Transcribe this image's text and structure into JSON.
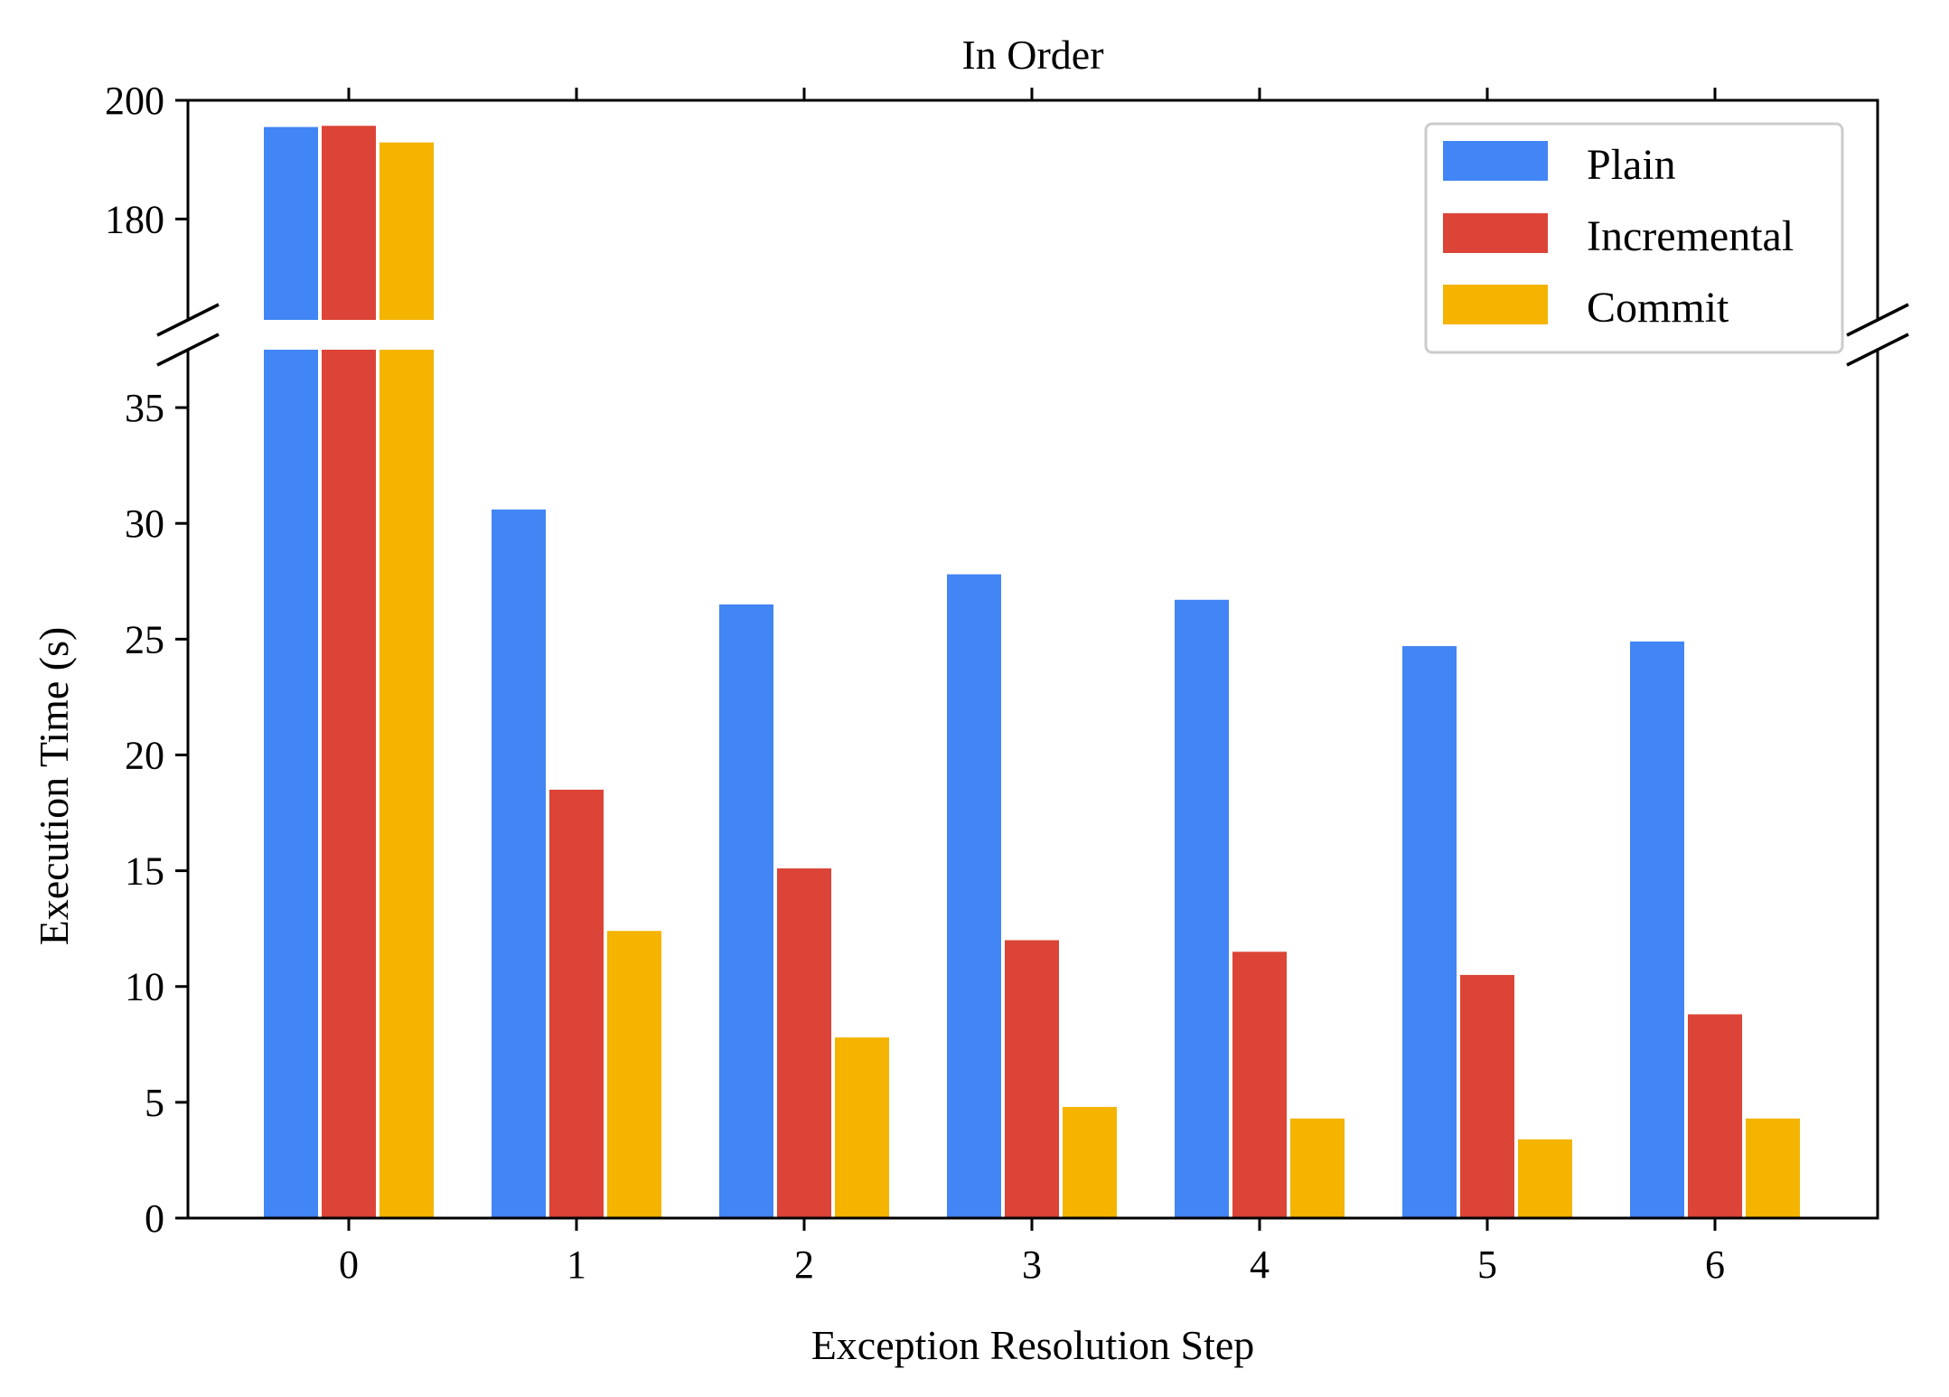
{
  "chart_data": {
    "type": "bar",
    "title": "In Order",
    "xlabel": "Exception Resolution Step",
    "ylabel": "Execution Time (s)",
    "categories": [
      "0",
      "1",
      "2",
      "3",
      "4",
      "5",
      "6"
    ],
    "series": [
      {
        "name": "Plain",
        "color": "#4285f4",
        "values": [
          195.5,
          30.6,
          26.5,
          27.8,
          26.7,
          24.7,
          24.9
        ]
      },
      {
        "name": "Incremental",
        "color": "#db4437",
        "values": [
          195.7,
          18.5,
          15.1,
          12.0,
          11.5,
          10.5,
          8.8
        ]
      },
      {
        "name": "Commit",
        "color": "#f4b400",
        "values": [
          192.9,
          12.4,
          7.8,
          4.8,
          4.3,
          3.4,
          4.3
        ]
      }
    ],
    "y_axis_broken": true,
    "ylim_upper": [
      163,
      200
    ],
    "ylim_lower": [
      0,
      37.5
    ],
    "yticks_upper": [
      "180",
      "200"
    ],
    "yticks_lower": [
      "0",
      "5",
      "10",
      "15",
      "20",
      "25",
      "30",
      "35"
    ],
    "legend": {
      "position": "upper right",
      "entries": [
        "Plain",
        "Incremental",
        "Commit"
      ]
    },
    "grid": false
  }
}
